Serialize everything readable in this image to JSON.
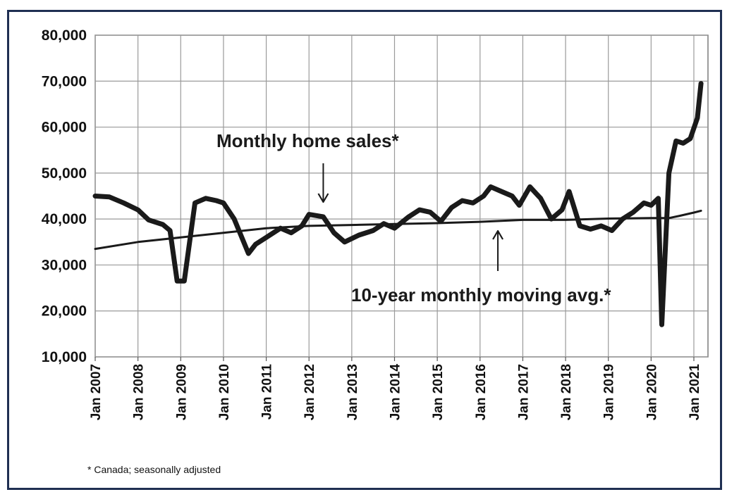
{
  "chart_data": {
    "type": "line",
    "title": "",
    "xlabel": "",
    "ylabel": "",
    "ylim": [
      10000,
      80000
    ],
    "yticks": [
      10000,
      20000,
      30000,
      40000,
      50000,
      60000,
      70000,
      80000
    ],
    "ytick_labels": [
      "10,000",
      "20,000",
      "30,000",
      "40,000",
      "50,000",
      "60,000",
      "70,000",
      "80,000"
    ],
    "xticks": [
      2007,
      2008,
      2009,
      2010,
      2011,
      2012,
      2013,
      2014,
      2015,
      2016,
      2017,
      2018,
      2019,
      2020,
      2021
    ],
    "xtick_labels": [
      "Jan 2007",
      "Jan 2008",
      "Jan 2009",
      "Jan 2010",
      "Jan 2011",
      "Jan 2012",
      "Jan 2013",
      "Jan 2014",
      "Jan 2015",
      "Jan 2016",
      "Jan 2017",
      "Jan 2018",
      "Jan 2019",
      "Jan 2020",
      "Jan 2021"
    ],
    "grid": true,
    "series": [
      {
        "name": "Monthly home sales*",
        "x": [
          "2007-01",
          "2007-05",
          "2007-09",
          "2008-01",
          "2008-04",
          "2008-08",
          "2008-10",
          "2008-12",
          "2009-02",
          "2009-05",
          "2009-08",
          "2009-11",
          "2010-01",
          "2010-04",
          "2010-08",
          "2010-10",
          "2011-01",
          "2011-05",
          "2011-08",
          "2011-11",
          "2012-01",
          "2012-05",
          "2012-08",
          "2012-11",
          "2013-03",
          "2013-07",
          "2013-10",
          "2014-01",
          "2014-05",
          "2014-08",
          "2014-11",
          "2015-02",
          "2015-05",
          "2015-08",
          "2015-11",
          "2016-02",
          "2016-04",
          "2016-07",
          "2016-10",
          "2016-12",
          "2017-03",
          "2017-06",
          "2017-09",
          "2017-12",
          "2018-02",
          "2018-05",
          "2018-08",
          "2018-11",
          "2019-02",
          "2019-05",
          "2019-08",
          "2019-11",
          "2020-01",
          "2020-03",
          "2020-04",
          "2020-06",
          "2020-08",
          "2020-10",
          "2020-12",
          "2021-02",
          "2021-03"
        ],
        "y": [
          45000,
          44800,
          43500,
          42000,
          39800,
          38800,
          37500,
          26500,
          26500,
          43500,
          44500,
          44000,
          43500,
          40000,
          32500,
          34500,
          36000,
          38000,
          37000,
          38500,
          41000,
          40500,
          37000,
          35000,
          36500,
          37500,
          39000,
          38000,
          40500,
          42000,
          41500,
          39500,
          42500,
          44000,
          43500,
          45000,
          47000,
          46000,
          45000,
          43000,
          47000,
          44500,
          40000,
          42000,
          46000,
          38500,
          37800,
          38500,
          37500,
          40000,
          41500,
          43500,
          43000,
          44500,
          17000,
          50000,
          57000,
          56500,
          57500,
          62000,
          69500
        ]
      },
      {
        "name": "10-year monthly moving avg.*",
        "x": [
          "2007-01",
          "2008-01",
          "2009-01",
          "2010-01",
          "2011-01",
          "2012-01",
          "2013-01",
          "2014-01",
          "2015-01",
          "2016-01",
          "2017-01",
          "2018-01",
          "2019-01",
          "2020-01",
          "2020-06",
          "2020-09",
          "2021-01",
          "2021-03"
        ],
        "y": [
          33500,
          35000,
          36000,
          37000,
          38000,
          38500,
          38700,
          38900,
          39100,
          39400,
          39800,
          39800,
          40100,
          40200,
          40200,
          40700,
          41400,
          41800
        ]
      }
    ],
    "annotations": [
      {
        "text": "Monthly home sales*",
        "points_to": "2012-05"
      },
      {
        "text": "10-year monthly moving avg.*",
        "points_to": "2016-06"
      }
    ],
    "footnote": "* Canada; seasonally adjusted"
  }
}
